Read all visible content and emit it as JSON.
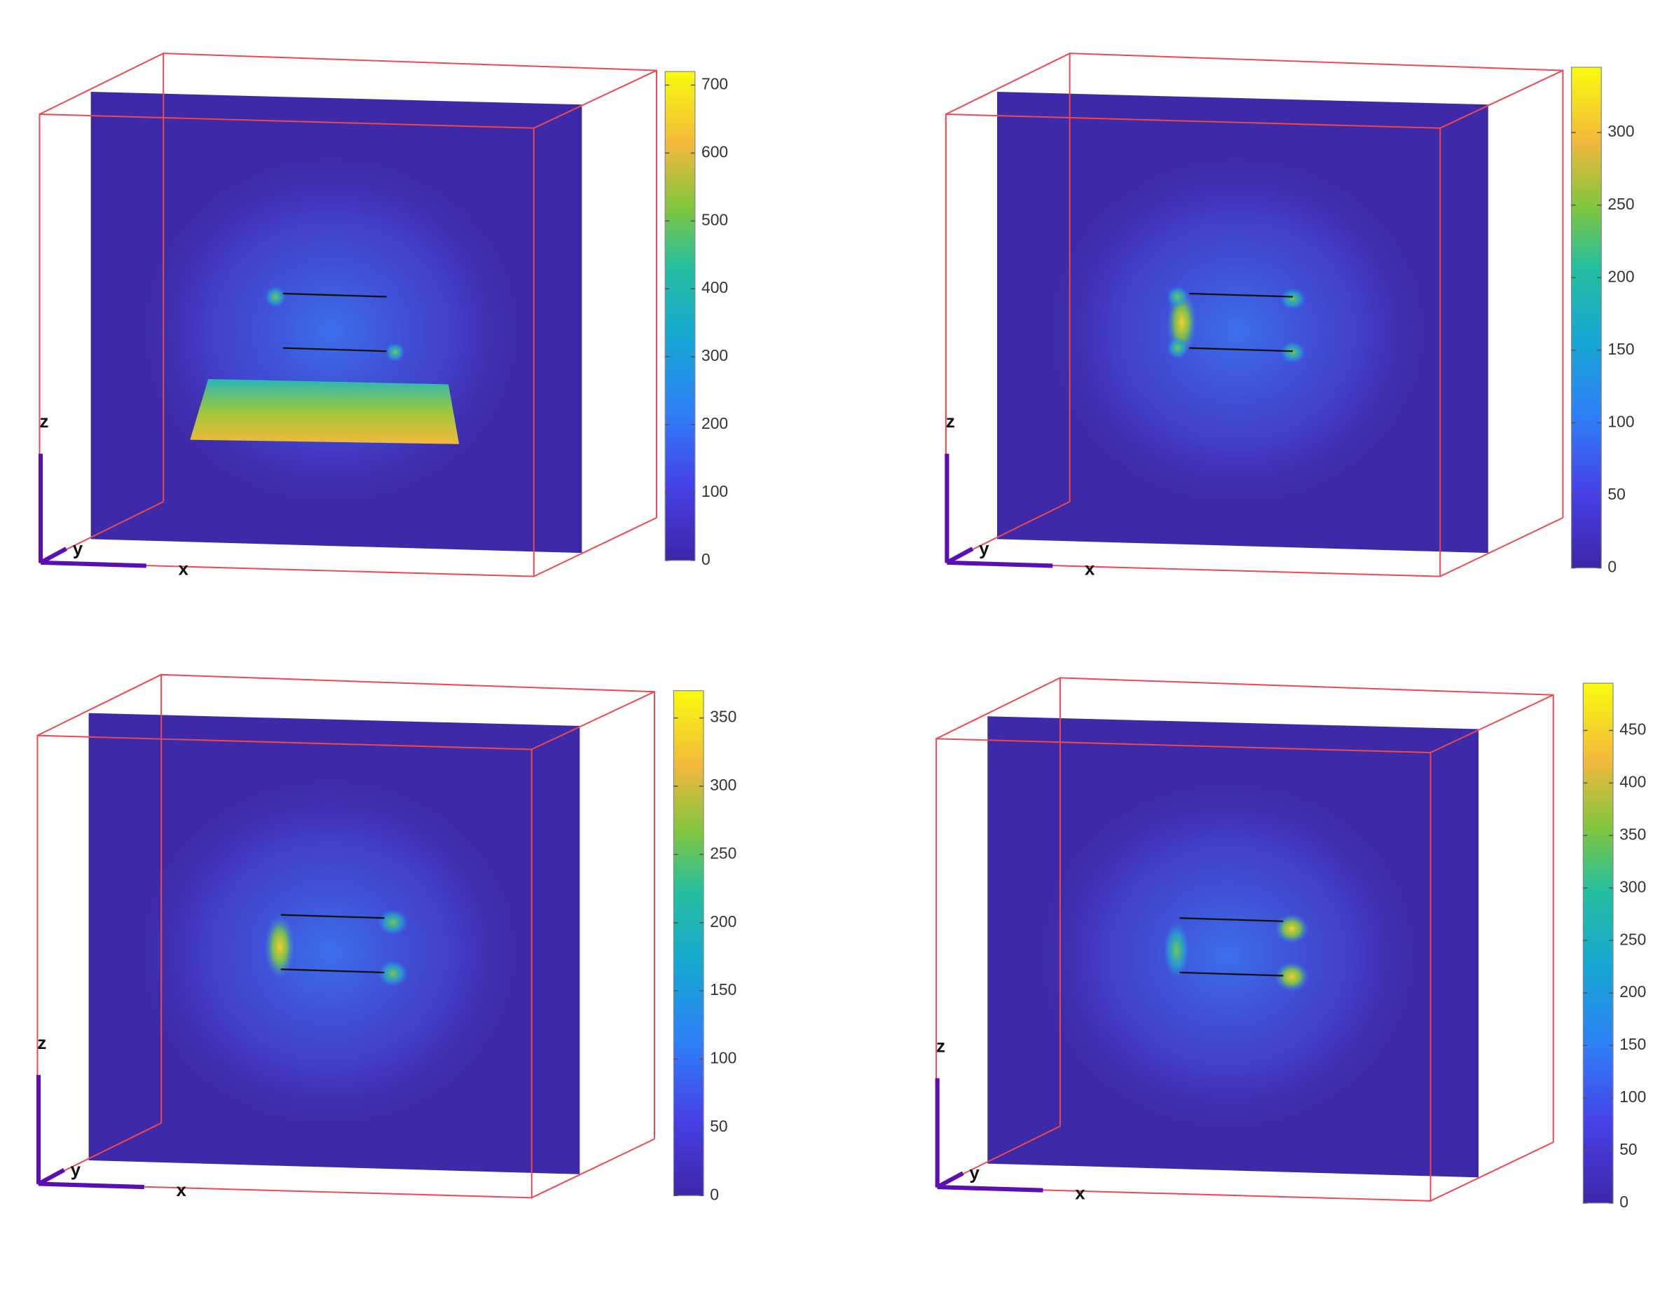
{
  "chart_data": [
    {
      "type": "slice",
      "xlabel": "x",
      "ylabel": "y",
      "zlabel": "z",
      "clim": [
        0,
        720
      ],
      "cticks": [
        0,
        100,
        200,
        300,
        400,
        500,
        600,
        700
      ]
    },
    {
      "type": "slice",
      "xlabel": "x",
      "ylabel": "y",
      "zlabel": "z",
      "clim": [
        0,
        345
      ],
      "cticks": [
        0,
        50,
        100,
        150,
        200,
        250,
        300
      ]
    },
    {
      "type": "slice",
      "xlabel": "x",
      "ylabel": "y",
      "zlabel": "z",
      "clim": [
        0,
        370
      ],
      "cticks": [
        0,
        50,
        100,
        150,
        200,
        250,
        300,
        350
      ]
    },
    {
      "type": "slice",
      "xlabel": "x",
      "ylabel": "y",
      "zlabel": "z",
      "clim": [
        0,
        495
      ],
      "cticks": [
        0,
        50,
        100,
        150,
        200,
        250,
        300,
        350,
        400,
        450
      ]
    }
  ]
}
